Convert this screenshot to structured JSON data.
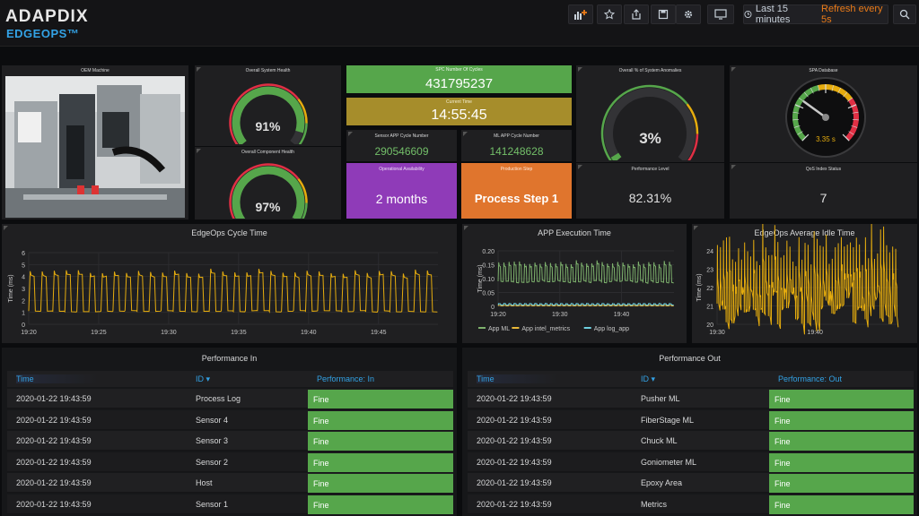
{
  "brand": {
    "name": "ADAPDIX",
    "sub": "EDGEOPS™"
  },
  "toolbar": {
    "icons": [
      "add-panel-icon",
      "star-icon",
      "share-icon",
      "save-icon",
      "gear-icon",
      "monitor-icon",
      "search-icon"
    ],
    "time_range": "Last 15 minutes",
    "refresh": "Refresh every 5s"
  },
  "panels": {
    "machine_title": "OEM Machine",
    "system_health": {
      "title": "Overall System Health",
      "value": "91%",
      "fraction": 0.91
    },
    "component_health": {
      "title": "Overall Component Health",
      "value": "97%",
      "fraction": 0.97
    },
    "cycles": {
      "title": "SPC Number Of Cycles",
      "value": "431795237"
    },
    "current_time": {
      "title": "Current Time",
      "value": "14:55:45"
    },
    "sensor_app_cycles": {
      "title": "Sensor APP Cycle Number",
      "value": "290546609"
    },
    "ml_app_cycles": {
      "title": "ML APP Cycle Number",
      "value": "141248628"
    },
    "availability": {
      "title": "Operational Availability",
      "value": "2 months"
    },
    "production_step": {
      "title": "Production Step",
      "value": "Process Step 1"
    },
    "anomalies": {
      "title": "Overall % of System Anomalies",
      "value": "3%",
      "fraction": 0.03
    },
    "performance_level": {
      "title": "Performance Level",
      "value": "82.31%"
    },
    "spa_database": {
      "title": "SPA Database",
      "value": "3.35 s",
      "fraction": 0.3
    },
    "qos": {
      "title": "QoS Index Status",
      "value": "7"
    },
    "colors": {
      "green": "#56a64b",
      "olive": "#a68d2b",
      "purple": "#8f3bb8",
      "orange": "#e0752d",
      "yellow": "#e5ac0e",
      "red": "#e02f44"
    }
  },
  "chart_data": [
    {
      "type": "line",
      "title": "EdgeOps Cycle Time",
      "ylabel": "Time (ms)",
      "ylim": [
        0,
        6
      ],
      "yticks": [
        "0",
        "1",
        "2",
        "3",
        "4",
        "5",
        "6"
      ],
      "xticks": [
        "19:20",
        "19:25",
        "19:30",
        "19:35",
        "19:40",
        "19:45"
      ],
      "series": [
        {
          "color": "#e5ac0e",
          "low": 1.1,
          "high": 4.2,
          "cycles": 34
        }
      ]
    },
    {
      "type": "line",
      "title": "APP Execution Time",
      "ylabel": "Time (ms)",
      "ylim": [
        0,
        0.2
      ],
      "yticks": [
        "0",
        "0.05",
        "0.10",
        "0.15",
        "0.20"
      ],
      "xticks": [
        "19:20",
        "19:30",
        "19:40"
      ],
      "legend_position": "bottom",
      "series": [
        {
          "name": "App ML",
          "color": "#7eb26d",
          "low": 0.09,
          "high": 0.15,
          "cycles": 34
        },
        {
          "name": "App intel_metrics",
          "color": "#eab839",
          "low": 0.002,
          "high": 0.004,
          "cycles": 34
        },
        {
          "name": "App log_app",
          "color": "#6ed0e0",
          "low": 0.005,
          "high": 0.01,
          "cycles": 34
        }
      ]
    },
    {
      "type": "line",
      "title": "EdgeOps Average Idle Time",
      "ylabel": "Time (ms)",
      "ylim": [
        20,
        24
      ],
      "yticks": [
        "20",
        "21",
        "22",
        "23",
        "24"
      ],
      "xticks": [
        "19:30",
        "19:40"
      ],
      "series": [
        {
          "color": "#e5ac0e",
          "low": 21.0,
          "high": 23.0,
          "cycles": 60
        }
      ]
    }
  ],
  "table_in": {
    "title": "Performance In",
    "headers": [
      "Time",
      "ID ▾",
      "Performance: In"
    ],
    "rows": [
      {
        "time": "2020-01-22 19:43:59",
        "id": "Process Log",
        "perf": "Fine"
      },
      {
        "time": "2020-01-22 19:43:59",
        "id": "Sensor 4",
        "perf": "Fine"
      },
      {
        "time": "2020-01-22 19:43:59",
        "id": "Sensor 3",
        "perf": "Fine"
      },
      {
        "time": "2020-01-22 19:43:59",
        "id": "Sensor 2",
        "perf": "Fine"
      },
      {
        "time": "2020-01-22 19:43:59",
        "id": "Host",
        "perf": "Fine"
      },
      {
        "time": "2020-01-22 19:43:59",
        "id": "Sensor 1",
        "perf": "Fine"
      }
    ]
  },
  "table_out": {
    "title": "Performance Out",
    "headers": [
      "Time",
      "ID ▾",
      "Performance: Out"
    ],
    "rows": [
      {
        "time": "2020-01-22 19:43:59",
        "id": "Pusher ML",
        "perf": "Fine"
      },
      {
        "time": "2020-01-22 19:43:59",
        "id": "FiberStage ML",
        "perf": "Fine"
      },
      {
        "time": "2020-01-22 19:43:59",
        "id": "Chuck ML",
        "perf": "Fine"
      },
      {
        "time": "2020-01-22 19:43:59",
        "id": "Goniometer ML",
        "perf": "Fine"
      },
      {
        "time": "2020-01-22 19:43:59",
        "id": "Epoxy Area",
        "perf": "Fine"
      },
      {
        "time": "2020-01-22 19:43:59",
        "id": "Metrics",
        "perf": "Fine"
      }
    ]
  }
}
